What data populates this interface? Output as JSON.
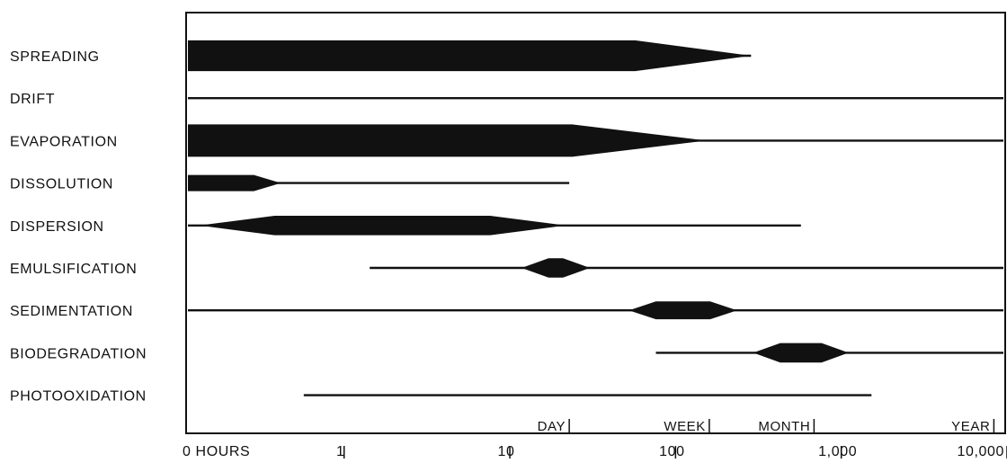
{
  "chart_data": {
    "type": "range-bar",
    "x_scale": "log",
    "x_unit": "HOURS",
    "ticks": [
      {
        "value": 0,
        "label": "0 HOURS"
      },
      {
        "value": 1,
        "label": "1"
      },
      {
        "value": 10,
        "label": "10"
      },
      {
        "value": 100,
        "label": "100"
      },
      {
        "value": 1000,
        "label": "1,000"
      },
      {
        "value": 10000,
        "label": "10,000"
      }
    ],
    "time_markers": [
      {
        "label": "DAY",
        "hours": 24
      },
      {
        "label": "WEEK",
        "hours": 168
      },
      {
        "label": "MONTH",
        "hours": 720
      },
      {
        "label": "YEAR",
        "hours": 8760
      }
    ],
    "processes": [
      {
        "name": "SPREADING",
        "active_hours": [
          0,
          300
        ],
        "intense_hours": [
          0,
          60
        ],
        "max_intensity": 0.95
      },
      {
        "name": "DRIFT",
        "active_hours": [
          0,
          10000
        ],
        "intense_hours": null,
        "max_intensity": 0
      },
      {
        "name": "EVAPORATION",
        "active_hours": [
          0,
          10000
        ],
        "intense_hours": [
          0,
          25
        ],
        "max_intensity": 1.0
      },
      {
        "name": "DISSOLUTION",
        "active_hours": [
          0,
          24
        ],
        "intense_hours": [
          0,
          0.3
        ],
        "max_intensity": 0.5
      },
      {
        "name": "DISPERSION",
        "active_hours": [
          0,
          600
        ],
        "intense_hours": [
          0.4,
          8
        ],
        "max_intensity": 0.6
      },
      {
        "name": "EMULSIFICATION",
        "active_hours": [
          1.5,
          10000
        ],
        "intense_hours": [
          18,
          22
        ],
        "max_intensity": 0.6
      },
      {
        "name": "SEDIMENTATION",
        "active_hours": [
          0,
          10000
        ],
        "intense_hours": [
          80,
          170
        ],
        "max_intensity": 0.55
      },
      {
        "name": "BIODEGRADATION",
        "active_hours": [
          80,
          10000
        ],
        "intense_hours": [
          450,
          800
        ],
        "max_intensity": 0.6
      },
      {
        "name": "PHOTOOXIDATION",
        "active_hours": [
          0.6,
          1600
        ],
        "intense_hours": null,
        "max_intensity": 0
      }
    ]
  }
}
